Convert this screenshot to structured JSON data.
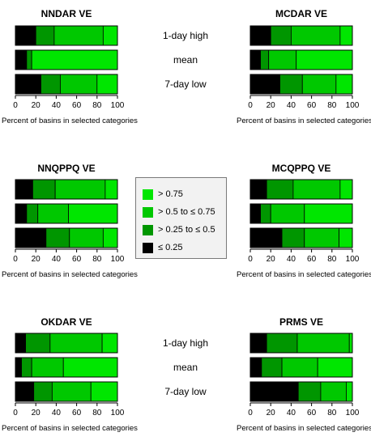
{
  "chart_data": {
    "type": "bar",
    "stacked": true,
    "orientation": "horizontal",
    "xlabel": "Percent of basins in selected categories",
    "xlim": [
      0,
      100
    ],
    "xticks": [
      0,
      20,
      40,
      60,
      80,
      100
    ],
    "categories": [
      "1-day high",
      "mean",
      "7-day low"
    ],
    "legend": {
      "placement": "center",
      "entries": [
        {
          "label": "> 0.75",
          "color": "#00e600"
        },
        {
          "label": "> 0.5 to ≤ 0.75",
          "color": "#00c800"
        },
        {
          "label": "> 0.25 to ≤ 0.5",
          "color": "#009600"
        },
        {
          "label": "≤ 0.25",
          "color": "#000000"
        }
      ]
    },
    "panels": [
      {
        "title": "NNDAR VE",
        "show_categories": true,
        "series": [
          {
            "name": "≤ 0.25",
            "values": [
              20,
              11,
              25
            ]
          },
          {
            "name": "> 0.25 to ≤ 0.5",
            "values": [
              18,
              5,
              19
            ]
          },
          {
            "name": "> 0.5 to ≤ 0.75",
            "values": [
              48,
              0,
              36
            ]
          },
          {
            "name": "> 0.75",
            "values": [
              14,
              84,
              20
            ]
          }
        ]
      },
      {
        "title": "MCDAR VE",
        "show_categories": false,
        "series": [
          {
            "name": "≤ 0.25",
            "values": [
              20,
              10,
              29
            ]
          },
          {
            "name": "> 0.25 to ≤ 0.5",
            "values": [
              20,
              8,
              22
            ]
          },
          {
            "name": "> 0.5 to ≤ 0.75",
            "values": [
              48,
              27,
              33
            ]
          },
          {
            "name": "> 0.75",
            "values": [
              12,
              55,
              16
            ]
          }
        ]
      },
      {
        "title": "NNQPPQ VE",
        "show_categories": false,
        "series": [
          {
            "name": "≤ 0.25",
            "values": [
              17,
              11,
              30
            ]
          },
          {
            "name": "> 0.25 to ≤ 0.5",
            "values": [
              22,
              11,
              23
            ]
          },
          {
            "name": "> 0.5 to ≤ 0.75",
            "values": [
              49,
              30,
              33
            ]
          },
          {
            "name": "> 0.75",
            "values": [
              12,
              48,
              14
            ]
          }
        ]
      },
      {
        "title": "MCQPPQ VE",
        "show_categories": false,
        "series": [
          {
            "name": "≤ 0.25",
            "values": [
              16,
              10,
              31
            ]
          },
          {
            "name": "> 0.25 to ≤ 0.5",
            "values": [
              26,
              10,
              22
            ]
          },
          {
            "name": "> 0.5 to ≤ 0.75",
            "values": [
              46,
              33,
              34
            ]
          },
          {
            "name": "> 0.75",
            "values": [
              12,
              47,
              13
            ]
          }
        ]
      },
      {
        "title": "OKDAR VE",
        "show_categories": true,
        "series": [
          {
            "name": "≤ 0.25",
            "values": [
              10,
              6,
              18
            ]
          },
          {
            "name": "> 0.25 to ≤ 0.5",
            "values": [
              24,
              10,
              18
            ]
          },
          {
            "name": "> 0.5 to ≤ 0.75",
            "values": [
              51,
              31,
              38
            ]
          },
          {
            "name": "> 0.75",
            "values": [
              15,
              53,
              26
            ]
          }
        ]
      },
      {
        "title": "PRMS VE",
        "show_categories": false,
        "series": [
          {
            "name": "≤ 0.25",
            "values": [
              16,
              11,
              47
            ]
          },
          {
            "name": "> 0.25 to ≤ 0.5",
            "values": [
              30,
              20,
              22
            ]
          },
          {
            "name": "> 0.5 to ≤ 0.75",
            "values": [
              51,
              35,
              25
            ]
          },
          {
            "name": "> 0.75",
            "values": [
              3,
              34,
              6
            ]
          }
        ]
      }
    ]
  }
}
